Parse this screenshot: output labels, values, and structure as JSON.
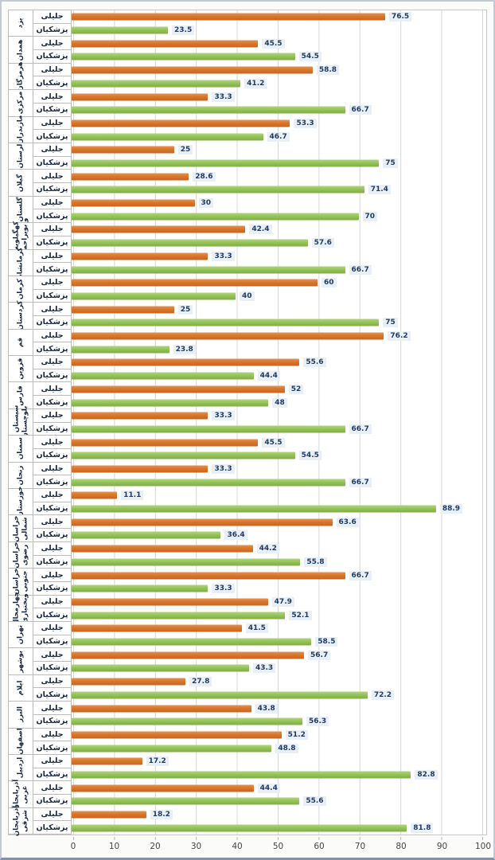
{
  "chart_data": {
    "type": "bar",
    "orientation": "horizontal",
    "title": "",
    "xlabel": "",
    "ylabel": "",
    "xlim": [
      0,
      100
    ],
    "x_ticks": [
      "0",
      "10",
      "20",
      "30",
      "40",
      "50",
      "60",
      "70",
      "80",
      "90",
      "100"
    ],
    "grid": true,
    "value_labels": true,
    "series": [
      {
        "name": "جلیلی",
        "color": "#d8762b"
      },
      {
        "name": "پزشکیان",
        "color": "#95c35a"
      }
    ],
    "provinces": [
      {
        "name": "یزد",
        "values": [
          "76.5",
          "23.5"
        ]
      },
      {
        "name": "همدان",
        "values": [
          "45.5",
          "54.5"
        ]
      },
      {
        "name": "هرمزگان",
        "values": [
          "58.8",
          "41.2"
        ]
      },
      {
        "name": "مرکزی",
        "values": [
          "33.3",
          "66.7"
        ]
      },
      {
        "name": "مازندران",
        "values": [
          "53.3",
          "46.7"
        ]
      },
      {
        "name": "لرستان",
        "values": [
          "25",
          "75"
        ]
      },
      {
        "name": "گیلان",
        "values": [
          "28.6",
          "71.4"
        ]
      },
      {
        "name": "گلستان",
        "values": [
          "30",
          "70"
        ]
      },
      {
        "name": "کهگیلویه\nو بویراحمد",
        "values": [
          "42.4",
          "57.6"
        ]
      },
      {
        "name": "کرمانشاه",
        "values": [
          "33.3",
          "66.7"
        ]
      },
      {
        "name": "کرمان",
        "values": [
          "60",
          "40"
        ]
      },
      {
        "name": "کردستان",
        "values": [
          "25",
          "75"
        ]
      },
      {
        "name": "قم",
        "values": [
          "76.2",
          "23.8"
        ]
      },
      {
        "name": "قزوین",
        "values": [
          "55.6",
          "44.4"
        ]
      },
      {
        "name": "فارس",
        "values": [
          "52",
          "48"
        ]
      },
      {
        "name": "سیستان و\nبلوچستان",
        "values": [
          "33.3",
          "66.7"
        ]
      },
      {
        "name": "سمنان",
        "values": [
          "45.5",
          "54.5"
        ]
      },
      {
        "name": "زنجان",
        "values": [
          "33.3",
          "66.7"
        ]
      },
      {
        "name": "خوزستان",
        "values": [
          "11.1",
          "88.9"
        ]
      },
      {
        "name": "خراسان\nشمالی",
        "values": [
          "63.6",
          "36.4"
        ]
      },
      {
        "name": "خراسان\nرضوی",
        "values": [
          "44.2",
          "55.8"
        ]
      },
      {
        "name": "خراسان\nجنوبی",
        "values": [
          "66.7",
          "33.3"
        ]
      },
      {
        "name": "چهارمحال\nوبختیاری",
        "values": [
          "47.9",
          "52.1"
        ]
      },
      {
        "name": "تهران",
        "values": [
          "41.5",
          "58.5"
        ]
      },
      {
        "name": "بوشهر",
        "values": [
          "56.7",
          "43.3"
        ]
      },
      {
        "name": "ایلام",
        "values": [
          "27.8",
          "72.2"
        ]
      },
      {
        "name": "البرز",
        "values": [
          "43.8",
          "56.3"
        ]
      },
      {
        "name": "اصفهان",
        "values": [
          "51.2",
          "48.8"
        ]
      },
      {
        "name": "اردبیل",
        "values": [
          "17.2",
          "82.8"
        ]
      },
      {
        "name": "آذربایجان\nغربی",
        "values": [
          "44.4",
          "55.6"
        ]
      },
      {
        "name": "آذربایجان\nشرقی",
        "values": [
          "18.2",
          "81.8"
        ]
      }
    ]
  },
  "colors": {
    "bar_orange": "#d8762b",
    "bar_green": "#95c35a",
    "gridline": "#d8d8d8",
    "cell_border": "#bdbdbd",
    "value_text": "#1f3a5f",
    "value_bg": "#e9eff7",
    "label_text": "#16253d",
    "axis_text": "#444444",
    "frame_border": "#c3cad3",
    "frame_bottom": "#7e93ad"
  }
}
